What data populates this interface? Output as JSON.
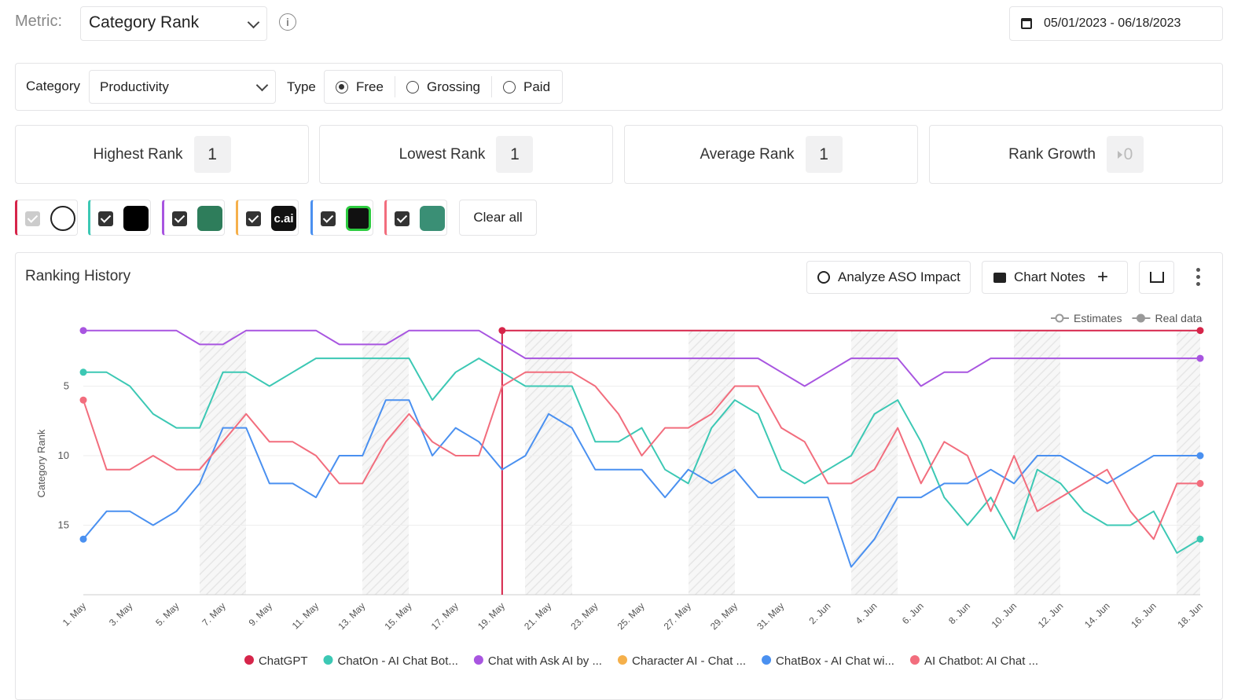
{
  "header": {
    "metric_label": "Metric:",
    "metric": "Category Rank",
    "date_range": "05/01/2023 - 06/18/2023"
  },
  "filters": {
    "category_label": "Category",
    "category": "Productivity",
    "type_label": "Type",
    "types": [
      "Free",
      "Grossing",
      "Paid"
    ],
    "selected_type": "Free"
  },
  "stats": [
    {
      "label": "Highest Rank",
      "value": 1
    },
    {
      "label": "Lowest Rank",
      "value": 1
    },
    {
      "label": "Average Rank",
      "value": 1
    },
    {
      "label": "Rank Growth",
      "value": 0
    }
  ],
  "apps": {
    "icon_text": "c.ai",
    "clear_all": "Clear all"
  },
  "panel": {
    "title": "Ranking History",
    "analyze": "Analyze ASO Impact",
    "notes": "Chart Notes"
  },
  "chart_data": {
    "type": "line",
    "y_label": "Category Rank",
    "y_reversed": true,
    "ylim": [
      0,
      20
    ],
    "yticks": [
      5,
      10,
      15
    ],
    "grid": true,
    "legend_markers": [
      "Estimates",
      "Real data"
    ],
    "categories": [
      "1. May",
      null,
      "3. May",
      null,
      "5. May",
      null,
      "7. May",
      null,
      "9. May",
      null,
      "11. May",
      null,
      "13. May",
      null,
      "15. May",
      null,
      "17. May",
      null,
      "19. May",
      null,
      "21. May",
      null,
      "23. May",
      null,
      "25. May",
      null,
      "27. May",
      null,
      "29. May",
      null,
      "31. May",
      null,
      "2. Jun",
      null,
      "4. Jun",
      null,
      "6. Jun",
      null,
      "8. Jun",
      null,
      "10. Jun",
      null,
      "12. Jun",
      null,
      "14. Jun",
      null,
      "16. Jun",
      null,
      "18. Jun"
    ],
    "series": [
      {
        "name": "ChatGPT",
        "color": "#d6254a",
        "values": [
          null,
          null,
          null,
          null,
          null,
          null,
          null,
          null,
          null,
          null,
          null,
          null,
          null,
          null,
          null,
          null,
          null,
          null,
          1,
          1,
          1,
          1,
          1,
          1,
          1,
          1,
          1,
          1,
          1,
          1,
          1,
          1,
          1,
          1,
          1,
          1,
          1,
          1,
          1,
          1,
          1,
          1,
          1,
          1,
          1,
          1,
          1,
          1,
          1
        ]
      },
      {
        "name": "ChatOn - AI Chat Bot...",
        "color": "#3cc8b4",
        "values": [
          4,
          4,
          5,
          7,
          8,
          8,
          4,
          4,
          5,
          4,
          3,
          3,
          3,
          3,
          3,
          6,
          4,
          3,
          4,
          5,
          5,
          5,
          9,
          9,
          8,
          11,
          12,
          8,
          6,
          7,
          11,
          12,
          11,
          10,
          7,
          6,
          9,
          13,
          15,
          13,
          16,
          11,
          12,
          14,
          15,
          15,
          14,
          17,
          16
        ]
      },
      {
        "name": "Chat with Ask AI by ...",
        "color": "#a855e0",
        "values": [
          1,
          1,
          1,
          1,
          1,
          2,
          2,
          1,
          1,
          1,
          1,
          2,
          2,
          2,
          1,
          1,
          1,
          1,
          2,
          3,
          3,
          3,
          3,
          3,
          3,
          3,
          3,
          3,
          3,
          3,
          4,
          5,
          4,
          3,
          3,
          3,
          5,
          4,
          4,
          3,
          3,
          3,
          3,
          3,
          3,
          3,
          3,
          3,
          3
        ]
      },
      {
        "name": "Character AI - Chat ...",
        "color": "#f5b04b",
        "values": [
          null,
          null,
          null,
          null,
          null,
          null,
          null,
          null,
          null,
          null,
          null,
          null,
          null,
          null,
          null,
          null,
          null,
          null,
          null,
          null,
          null,
          null,
          null,
          null,
          null,
          null,
          null,
          null,
          null,
          null,
          null,
          null,
          null,
          null,
          null,
          null,
          null,
          null,
          null,
          null,
          null,
          null,
          null,
          null,
          null,
          null,
          null,
          null,
          null
        ]
      },
      {
        "name": "ChatBox - AI Chat wi...",
        "color": "#4a90f0",
        "values": [
          16,
          14,
          14,
          15,
          14,
          12,
          8,
          8,
          12,
          12,
          13,
          10,
          10,
          6,
          6,
          10,
          8,
          9,
          11,
          10,
          7,
          8,
          11,
          11,
          11,
          13,
          11,
          12,
          11,
          13,
          13,
          13,
          13,
          18,
          16,
          13,
          13,
          12,
          12,
          11,
          12,
          10,
          10,
          11,
          12,
          11,
          10,
          10,
          10
        ]
      },
      {
        "name": "AI Chatbot: AI Chat ...",
        "color": "#f26d7d",
        "values": [
          6,
          11,
          11,
          10,
          11,
          11,
          9,
          7,
          9,
          9,
          10,
          12,
          12,
          9,
          7,
          9,
          10,
          10,
          5,
          4,
          4,
          4,
          5,
          7,
          10,
          8,
          8,
          7,
          5,
          5,
          8,
          9,
          12,
          12,
          11,
          8,
          12,
          9,
          10,
          14,
          10,
          14,
          13,
          12,
          11,
          14,
          16,
          12,
          12
        ]
      }
    ]
  }
}
